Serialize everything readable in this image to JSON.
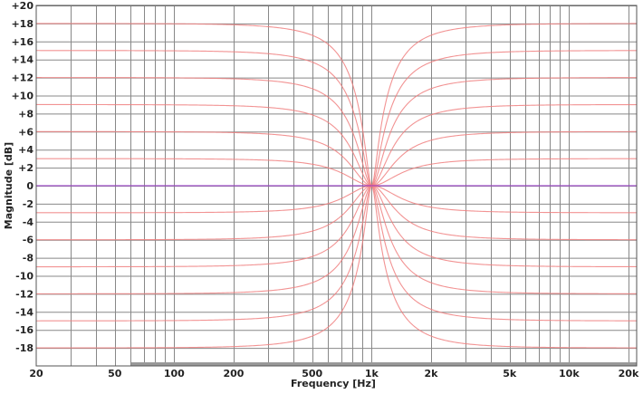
{
  "chart_data": {
    "type": "line",
    "title": "",
    "xlabel": "Frequency [Hz]",
    "ylabel": "Magnitude [dB]",
    "x_scale": "log",
    "xlim": [
      20,
      22000
    ],
    "ylim": [
      -20,
      20
    ],
    "grid": true,
    "center_frequency": 1000,
    "x_ticks": [
      {
        "value": 20,
        "label": "20"
      },
      {
        "value": 50,
        "label": "50"
      },
      {
        "value": 100,
        "label": "100"
      },
      {
        "value": 200,
        "label": "200"
      },
      {
        "value": 500,
        "label": "500"
      },
      {
        "value": 1000,
        "label": "1k"
      },
      {
        "value": 2000,
        "label": "2k"
      },
      {
        "value": 5000,
        "label": "5k"
      },
      {
        "value": 10000,
        "label": "10k"
      },
      {
        "value": 20000,
        "label": "20k"
      }
    ],
    "y_ticks": [
      {
        "value": 20,
        "label": "+20"
      },
      {
        "value": 18,
        "label": "+18"
      },
      {
        "value": 16,
        "label": "+16"
      },
      {
        "value": 14,
        "label": "+14"
      },
      {
        "value": 12,
        "label": "+12"
      },
      {
        "value": 10,
        "label": "+10"
      },
      {
        "value": 8,
        "label": "+8"
      },
      {
        "value": 6,
        "label": "+6"
      },
      {
        "value": 4,
        "label": "+4"
      },
      {
        "value": 2,
        "label": "+2"
      },
      {
        "value": 0,
        "label": "0"
      },
      {
        "value": -2,
        "label": "-2"
      },
      {
        "value": -4,
        "label": "-4"
      },
      {
        "value": -6,
        "label": "-6"
      },
      {
        "value": -8,
        "label": "-8"
      },
      {
        "value": -10,
        "label": "-10"
      },
      {
        "value": -12,
        "label": "-12"
      },
      {
        "value": -14,
        "label": "-14"
      },
      {
        "value": -16,
        "label": "-16"
      },
      {
        "value": -18,
        "label": "-18"
      }
    ],
    "series": [
      {
        "peak_gain_db": 18
      },
      {
        "peak_gain_db": 15
      },
      {
        "peak_gain_db": 12
      },
      {
        "peak_gain_db": 9
      },
      {
        "peak_gain_db": 6
      },
      {
        "peak_gain_db": 3
      },
      {
        "peak_gain_db": -3
      },
      {
        "peak_gain_db": -6
      },
      {
        "peak_gain_db": -9
      },
      {
        "peak_gain_db": -12
      },
      {
        "peak_gain_db": -15
      },
      {
        "peak_gain_db": -18
      }
    ],
    "colors": {
      "curve": "#f08080",
      "zero_line": "#9933cc",
      "grid": "#888888",
      "background": "#ffffff"
    }
  }
}
